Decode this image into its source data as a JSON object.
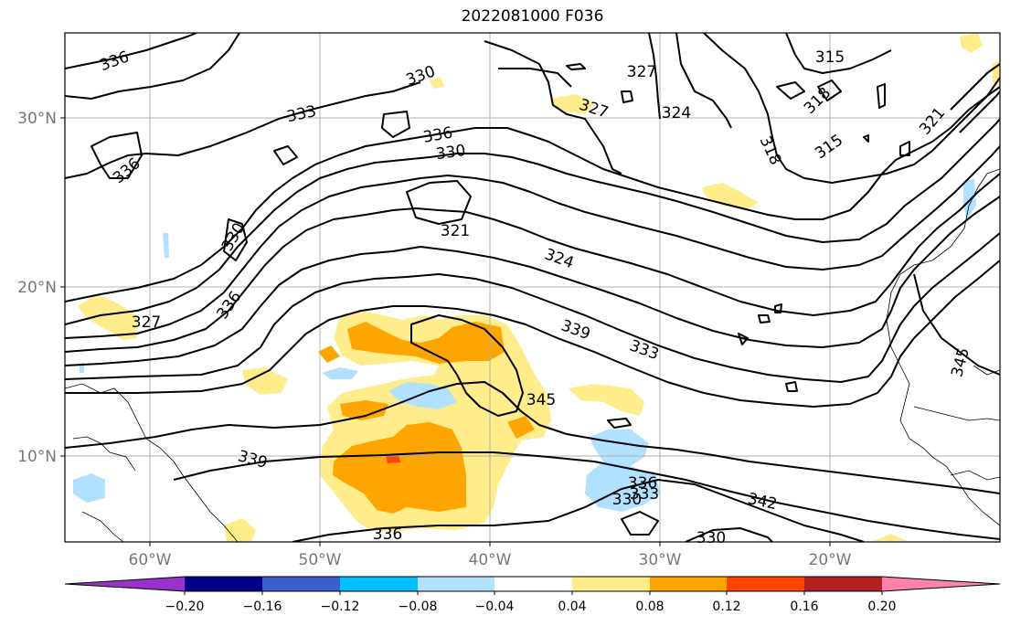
{
  "title": "2022081000 F036",
  "lat_labels": [
    "30°N",
    "20°N",
    "10°N"
  ],
  "lon_labels": [
    "60°W",
    "50°W",
    "40°W",
    "30°W",
    "20°W"
  ],
  "colorbar": {
    "ticks": [
      "−0.20",
      "−0.16",
      "−0.12",
      "−0.08",
      "−0.04",
      "0.04",
      "0.08",
      "0.12",
      "0.16",
      "0.20"
    ],
    "colors": [
      "#9932cc",
      "#00008b",
      "#3a5fcd",
      "#00bfff",
      "#b0e2ff",
      "#ffffff",
      "#ffec8b",
      "#ffa500",
      "#ff4500",
      "#b22222",
      "#ff82ab"
    ]
  },
  "contour_labels": [
    "336",
    "336",
    "333",
    "330",
    "336",
    "330",
    "327",
    "327",
    "324",
    "315",
    "318",
    "318",
    "315",
    "321",
    "330",
    "321",
    "324",
    "336",
    "327",
    "339",
    "333",
    "345",
    "345",
    "339",
    "336",
    "333",
    "330",
    "342",
    "330",
    "336"
  ]
}
